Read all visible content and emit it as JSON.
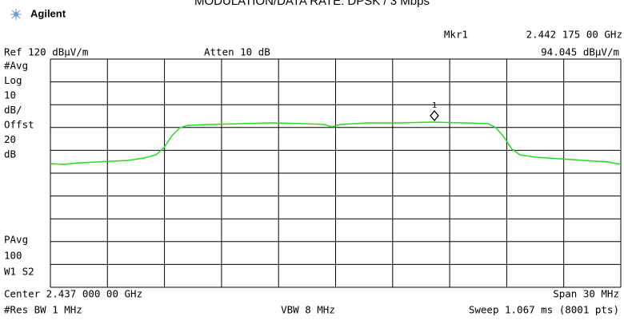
{
  "header": {
    "title": "MODULATION/DATA RATE: DPSK / 3 Mbps",
    "brand": "Agilent"
  },
  "marker": {
    "name": "Mkr1",
    "frequency": "2.442 175 00 GHz",
    "level": "94.045 dBµV/m",
    "label": "1"
  },
  "settings": {
    "ref": "Ref 120 dBµV/m",
    "atten": "Atten 10 dB"
  },
  "left_panel": [
    "#Avg",
    "Log",
    "10",
    "dB/",
    "Offst",
    "20",
    "dB"
  ],
  "left_panel_lower": [
    "PAvg",
    "100",
    "W1  S2"
  ],
  "footer": {
    "center": "Center 2.437 000 00 GHz",
    "span": "Span 30 MHz",
    "res_bw": "#Res BW 1 MHz",
    "vbw": "VBW 8 MHz",
    "sweep": "Sweep 1.067 ms (8001 pts)"
  }
}
